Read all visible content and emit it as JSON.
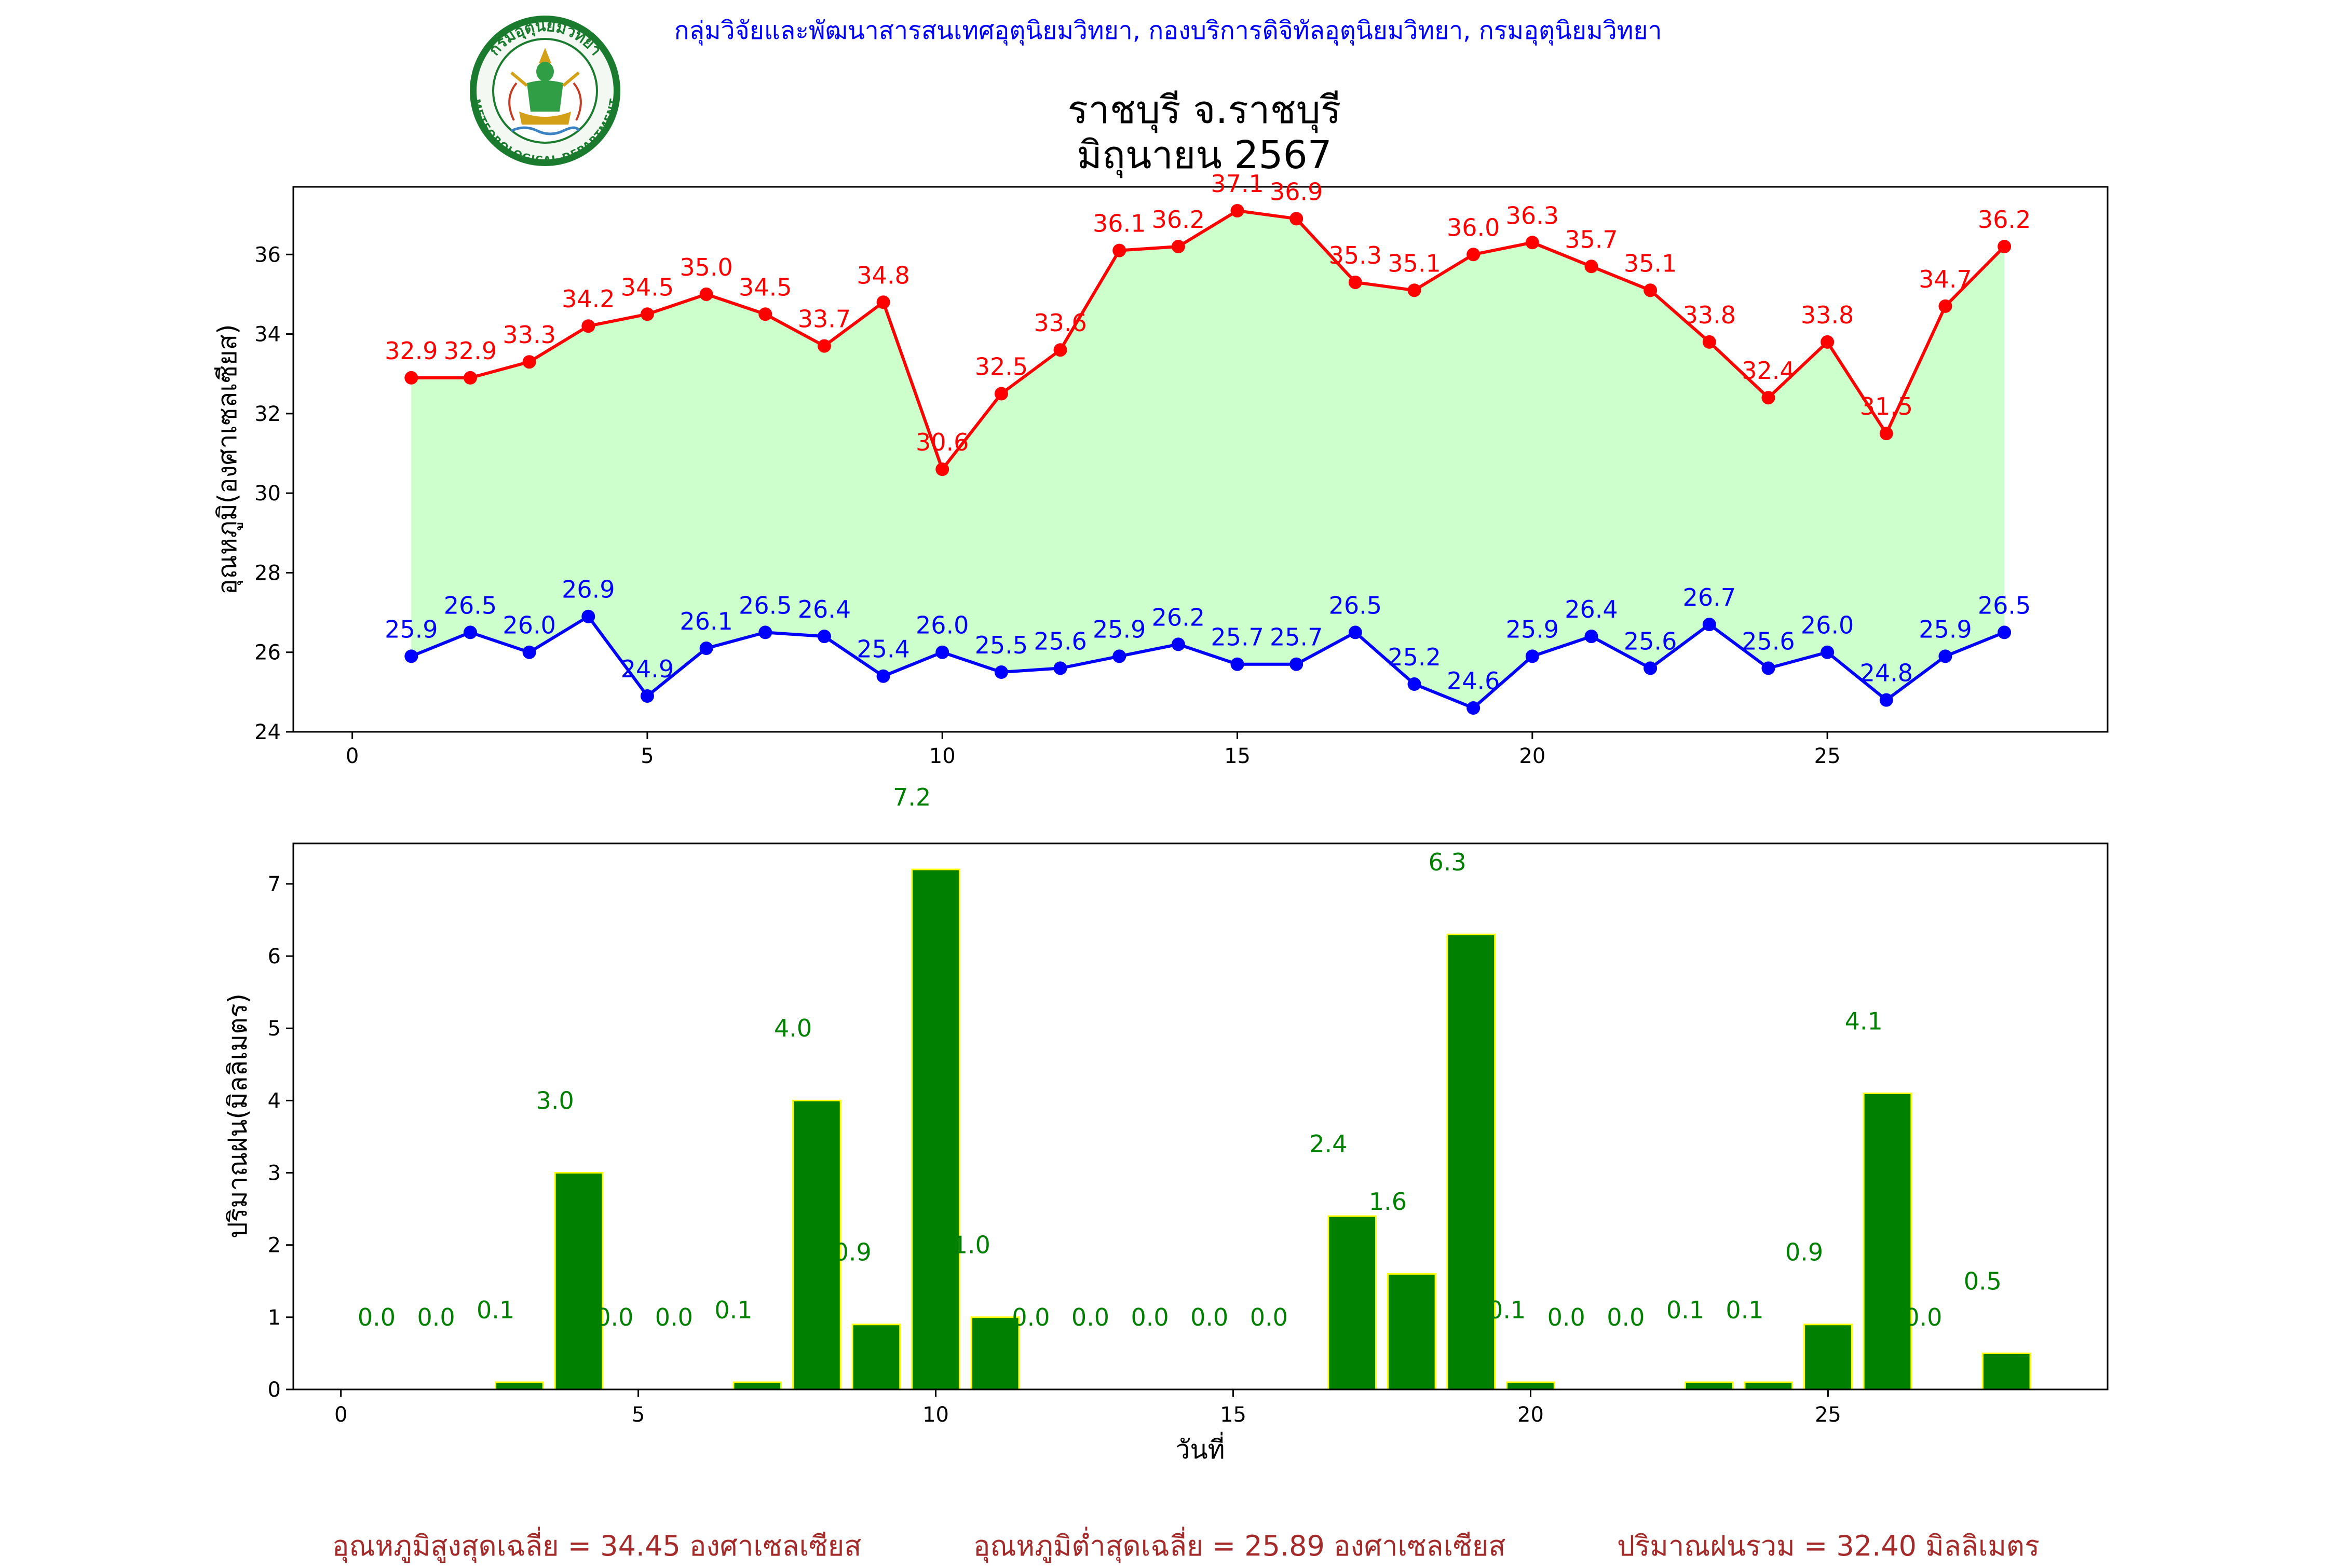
{
  "header": {
    "agency": "กลุ่มวิจัยและพัฒนาสารสนเทศอุตุนิยมวิทยา, กองบริการดิจิทัลอุตุนิยมวิทยา, กรมอุตุนิยมวิทยา",
    "title_line1": "ราชบุรี จ.ราชบุรี",
    "title_line2": "มิถุนายน 2567",
    "logo": {
      "name": "meteorological-department-seal",
      "top_text": "กรมอุตุนิยมวิทยา",
      "bottom_text": "METEOROLOGICAL DEPARTMENT"
    }
  },
  "colors": {
    "max_temp": "#ff0000",
    "min_temp": "#0000ff",
    "temp_fill": "#ccffcc",
    "rain_bar": "#008000",
    "rain_edge": "#ffff00",
    "rain_label": "#008000",
    "footer_text": "#a52a2a",
    "agency_text": "#0000ff"
  },
  "chart_data": [
    {
      "type": "line",
      "ylabel": "อุณหภูมิ(องศาเซลเซียส)",
      "xlabel": "",
      "xlim": [
        -1,
        29.75
      ],
      "ylim": [
        24,
        37.7
      ],
      "xticks": [
        0,
        5,
        10,
        15,
        20,
        25
      ],
      "yticks": [
        24,
        26,
        28,
        30,
        32,
        34,
        36
      ],
      "x": [
        1,
        2,
        3,
        4,
        5,
        6,
        7,
        8,
        9,
        10,
        11,
        12,
        13,
        14,
        15,
        16,
        17,
        18,
        19,
        20,
        21,
        22,
        23,
        24,
        25,
        26,
        27,
        28
      ],
      "series": [
        {
          "key": "max",
          "values": [
            32.9,
            32.9,
            33.3,
            34.2,
            34.5,
            35.0,
            34.5,
            33.7,
            34.8,
            30.6,
            32.5,
            33.6,
            36.1,
            36.2,
            37.1,
            36.9,
            35.3,
            35.1,
            36.0,
            36.3,
            35.7,
            35.1,
            33.8,
            32.4,
            33.8,
            31.5,
            34.7,
            36.2
          ]
        },
        {
          "key": "min",
          "values": [
            25.9,
            26.5,
            26.0,
            26.9,
            24.9,
            26.1,
            26.5,
            26.4,
            25.4,
            26.0,
            25.5,
            25.6,
            25.9,
            26.2,
            25.7,
            25.7,
            26.5,
            25.2,
            24.6,
            25.9,
            26.4,
            25.6,
            26.7,
            25.6,
            26.0,
            24.8,
            25.9,
            26.5
          ]
        }
      ],
      "fill_between": true,
      "data_labels": true,
      "grid": false
    },
    {
      "type": "bar",
      "ylabel": "ปริมาณฝน(มิลลิเมตร)",
      "xlabel": "วันที่",
      "xlim": [
        -0.8,
        29.7
      ],
      "ylim": [
        0,
        7.56
      ],
      "xticks": [
        0,
        5,
        10,
        15,
        20,
        25
      ],
      "yticks": [
        0,
        1,
        2,
        3,
        4,
        5,
        6,
        7
      ],
      "x": [
        1,
        2,
        3,
        4,
        5,
        6,
        7,
        8,
        9,
        10,
        11,
        12,
        13,
        14,
        15,
        16,
        17,
        18,
        19,
        20,
        21,
        22,
        23,
        24,
        25,
        26,
        27,
        28
      ],
      "values": [
        0.0,
        0.0,
        0.1,
        3.0,
        0.0,
        0.0,
        0.1,
        4.0,
        0.9,
        7.2,
        1.0,
        0.0,
        0.0,
        0.0,
        0.0,
        0.0,
        2.4,
        1.6,
        6.3,
        0.1,
        0.0,
        0.0,
        0.1,
        0.1,
        0.9,
        4.1,
        0.0,
        0.5
      ],
      "data_labels": true,
      "grid": false
    }
  ],
  "footer": {
    "avg_max": "อุณหภูมิสูงสุดเฉลี่ย = 34.45 องศาเซลเซียส",
    "avg_min": "อุณหภูมิต่ำสุดเฉลี่ย = 25.89 องศาเซลเซียส",
    "total_rain": "ปริมาณฝนรวม = 32.40 มิลลิเมตร"
  }
}
